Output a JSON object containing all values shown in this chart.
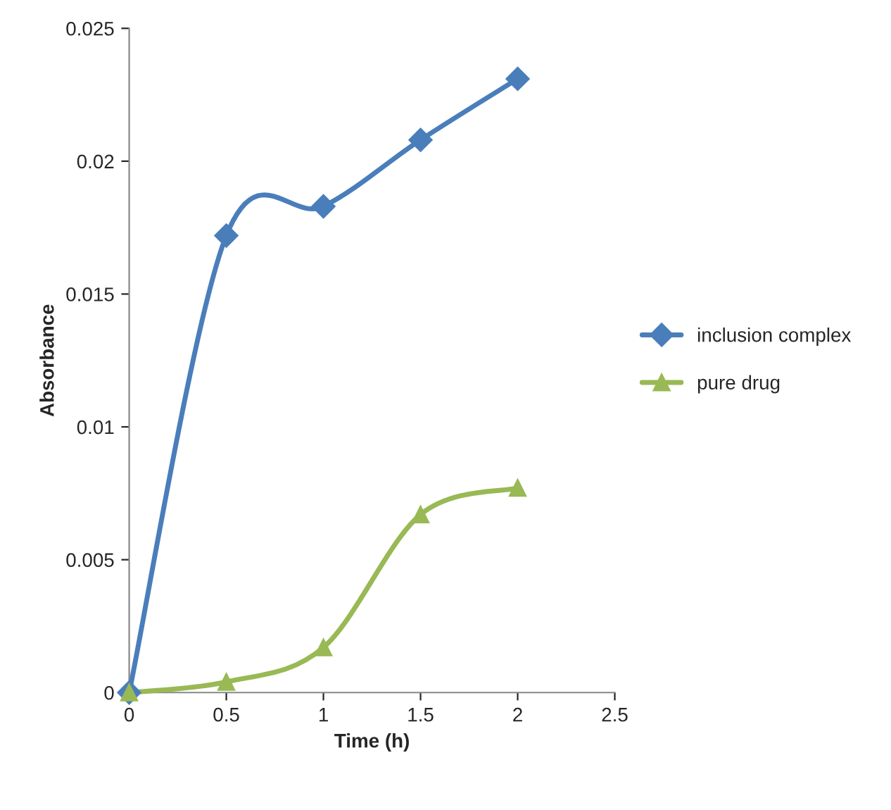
{
  "chart_data": {
    "type": "line",
    "xlabel": "Time (h)",
    "ylabel": "Absorbance",
    "x": [
      0,
      0.5,
      1,
      1.5,
      2
    ],
    "series": [
      {
        "name": "inclusion complex",
        "color": "#4a7ebb",
        "marker": "diamond",
        "values": [
          0,
          0.0172,
          0.0183,
          0.0208,
          0.0231
        ]
      },
      {
        "name": "pure drug",
        "color": "#98b954",
        "marker": "triangle",
        "values": [
          0,
          0.0004,
          0.0017,
          0.0067,
          0.0077
        ]
      }
    ],
    "xlim": [
      0,
      2.5
    ],
    "xticks": [
      0,
      0.5,
      1,
      1.5,
      2,
      2.5
    ],
    "ylim": [
      0,
      0.025
    ],
    "yticks": [
      0,
      0.005,
      0.01,
      0.015,
      0.02,
      0.025
    ],
    "grid": false,
    "legend": "right",
    "line_style": "solid"
  }
}
